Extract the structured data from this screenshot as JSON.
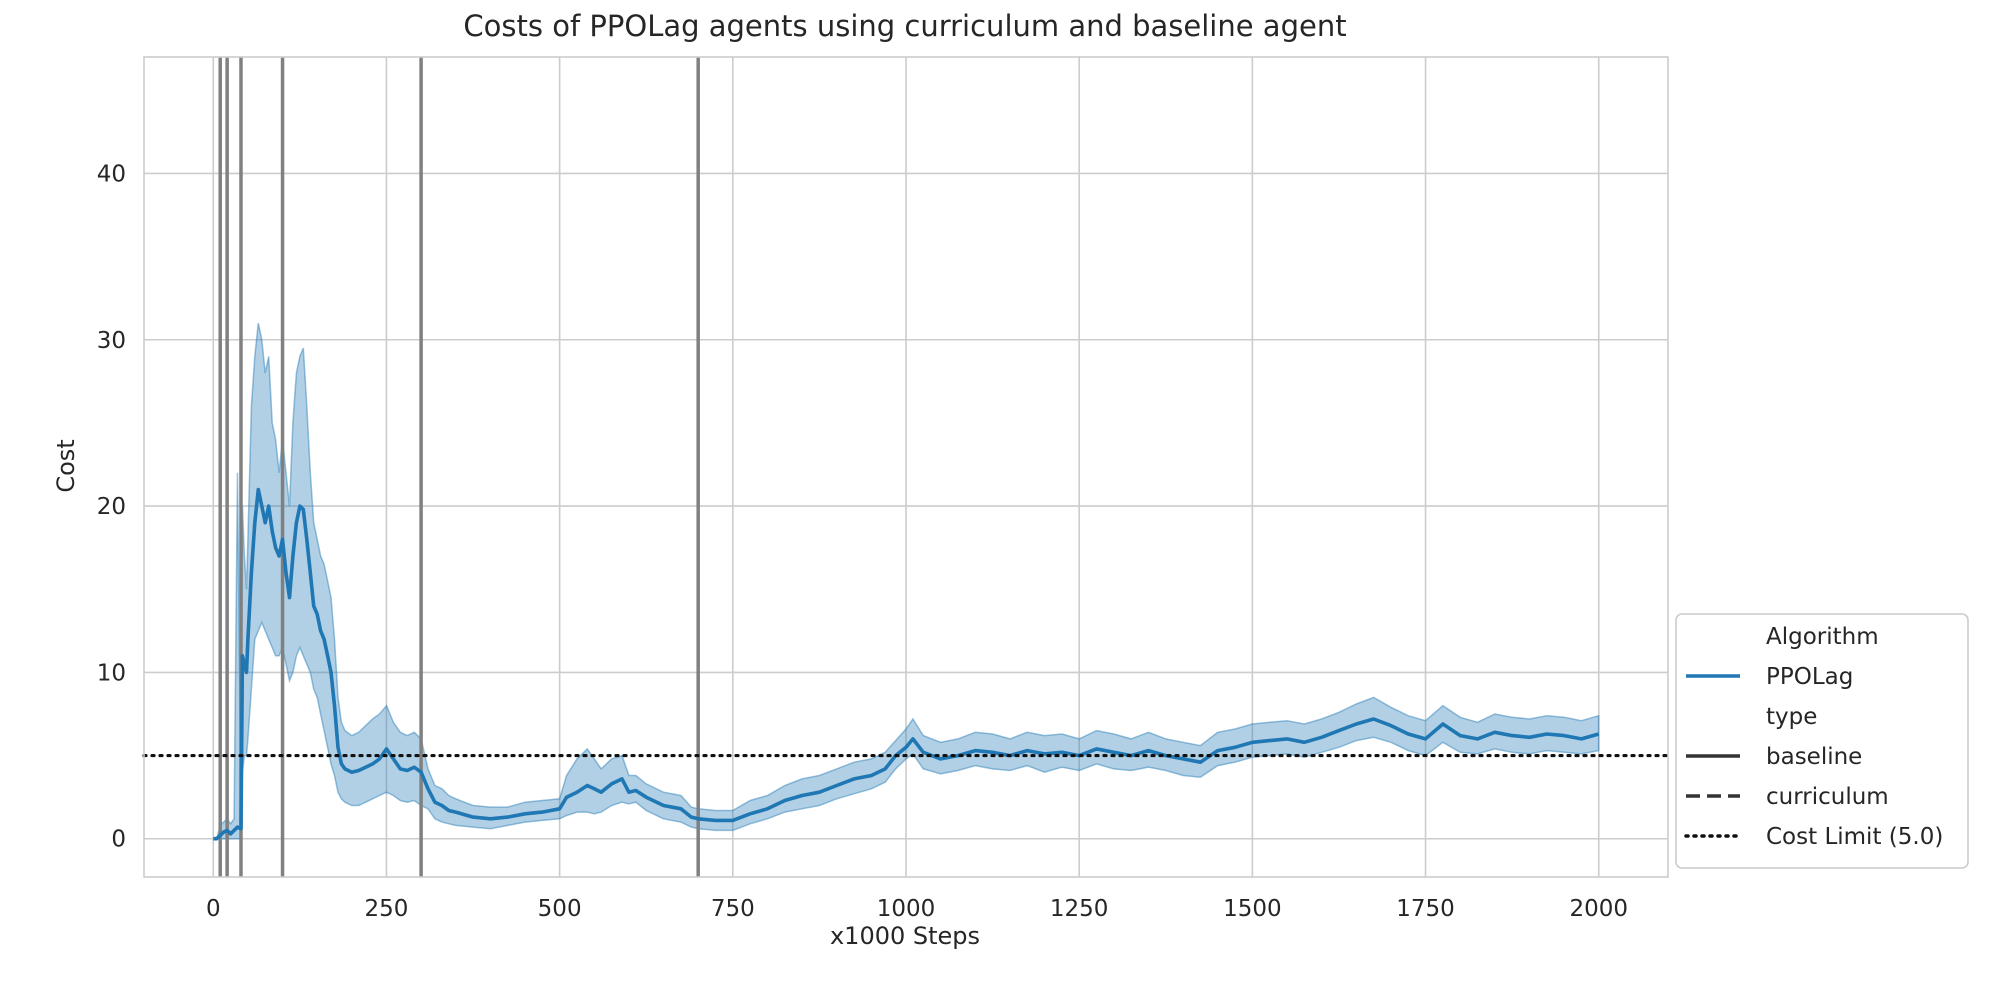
{
  "chart_data": {
    "type": "line",
    "title": "Costs of PPOLag agents using curriculum and baseline agent",
    "xlabel": "x1000 Steps",
    "ylabel": "Cost",
    "xlim": [
      -100,
      2100
    ],
    "ylim": [
      -2.3,
      47.0
    ],
    "x_ticks": [
      0,
      250,
      500,
      750,
      1000,
      1250,
      1500,
      1750,
      2000
    ],
    "y_ticks": [
      0,
      10,
      20,
      30,
      40
    ],
    "grid": true,
    "legend_placement": "lower-right outside",
    "legend": {
      "items": [
        {
          "label": "Algorithm",
          "style": "header"
        },
        {
          "label": "PPOLag",
          "style": "solid-blue"
        },
        {
          "label": "type",
          "style": "header"
        },
        {
          "label": "baseline",
          "style": "solid"
        },
        {
          "label": "curriculum",
          "style": "dashed"
        },
        {
          "label": "Cost Limit (5.0)",
          "style": "dotted"
        }
      ]
    },
    "cost_limit": 5.0,
    "curriculum_switches": [
      10,
      20,
      40,
      100,
      300,
      700
    ],
    "series": [
      {
        "name": "PPOLag",
        "color": "#1f77b4",
        "band_color": "#1f77b4",
        "x": [
          0,
          5,
          10,
          15,
          20,
          25,
          30,
          35,
          40,
          42,
          45,
          48,
          50,
          55,
          60,
          65,
          70,
          75,
          80,
          85,
          90,
          95,
          100,
          105,
          110,
          115,
          120,
          125,
          130,
          135,
          140,
          145,
          150,
          155,
          160,
          165,
          170,
          175,
          180,
          185,
          190,
          200,
          210,
          220,
          230,
          240,
          250,
          260,
          270,
          280,
          290,
          300,
          310,
          320,
          330,
          340,
          350,
          375,
          400,
          425,
          450,
          475,
          500,
          510,
          525,
          540,
          550,
          560,
          575,
          590,
          600,
          610,
          625,
          650,
          675,
          690,
          700,
          725,
          750,
          775,
          800,
          825,
          850,
          875,
          900,
          925,
          950,
          970,
          985,
          1000,
          1010,
          1025,
          1050,
          1075,
          1100,
          1125,
          1150,
          1175,
          1200,
          1225,
          1250,
          1275,
          1300,
          1325,
          1350,
          1375,
          1400,
          1425,
          1450,
          1475,
          1500,
          1525,
          1550,
          1575,
          1600,
          1625,
          1650,
          1675,
          1700,
          1725,
          1750,
          1775,
          1800,
          1825,
          1850,
          1875,
          1900,
          1925,
          1950,
          1975,
          2000
        ],
        "values": [
          0,
          0,
          0.2,
          0.4,
          0.5,
          0.3,
          0.5,
          0.7,
          0.6,
          11,
          10.5,
          10,
          12,
          16,
          19,
          21,
          20,
          19,
          20,
          18.5,
          17.5,
          17,
          18,
          16,
          14.5,
          17,
          19,
          20,
          19.8,
          18,
          16,
          14,
          13.5,
          12.5,
          12,
          11,
          10,
          8,
          5.5,
          4.5,
          4.2,
          4,
          4.1,
          4.3,
          4.5,
          4.8,
          5.4,
          4.8,
          4.2,
          4.1,
          4.3,
          4.0,
          3.0,
          2.2,
          2.0,
          1.7,
          1.6,
          1.3,
          1.2,
          1.3,
          1.5,
          1.6,
          1.8,
          2.5,
          2.8,
          3.2,
          3.0,
          2.8,
          3.3,
          3.6,
          2.8,
          2.9,
          2.5,
          2.0,
          1.8,
          1.3,
          1.2,
          1.1,
          1.1,
          1.5,
          1.8,
          2.3,
          2.6,
          2.8,
          3.2,
          3.6,
          3.8,
          4.2,
          5.0,
          5.5,
          6.0,
          5.2,
          4.8,
          5.0,
          5.3,
          5.2,
          5.0,
          5.3,
          5.1,
          5.2,
          5.0,
          5.4,
          5.2,
          5.0,
          5.3,
          5.0,
          4.8,
          4.6,
          5.3,
          5.5,
          5.8,
          5.9,
          6.0,
          5.8,
          6.1,
          6.5,
          6.9,
          7.2,
          6.8,
          6.3,
          6.0,
          6.9,
          6.2,
          6.0,
          6.4,
          6.2,
          6.1,
          6.3,
          6.2,
          6.0,
          6.3
        ],
        "lower": [
          0,
          0,
          0,
          0,
          0,
          0,
          0,
          0,
          0,
          4,
          5,
          5,
          6,
          9,
          12,
          12.5,
          13,
          12.5,
          12,
          11.5,
          11,
          11,
          11.5,
          10.5,
          9.5,
          10,
          11,
          11.5,
          11,
          10.5,
          10,
          9,
          8.5,
          7.5,
          6.5,
          5.5,
          4.5,
          3.8,
          2.8,
          2.4,
          2.2,
          2.0,
          2.0,
          2.2,
          2.4,
          2.6,
          2.8,
          2.6,
          2.3,
          2.2,
          2.3,
          2.0,
          1.8,
          1.2,
          1.0,
          0.9,
          0.8,
          0.7,
          0.6,
          0.8,
          1.0,
          1.1,
          1.2,
          1.4,
          1.6,
          1.6,
          1.5,
          1.6,
          2.0,
          2.2,
          2.1,
          2.2,
          1.7,
          1.2,
          1.0,
          0.7,
          0.6,
          0.5,
          0.5,
          0.9,
          1.2,
          1.6,
          1.8,
          2.0,
          2.4,
          2.7,
          3.0,
          3.4,
          4.2,
          4.8,
          5.1,
          4.2,
          3.9,
          4.1,
          4.4,
          4.2,
          4.1,
          4.4,
          4.0,
          4.3,
          4.1,
          4.5,
          4.2,
          4.1,
          4.3,
          4.1,
          3.8,
          3.7,
          4.4,
          4.6,
          4.9,
          5.0,
          5.1,
          4.9,
          5.2,
          5.5,
          5.9,
          6.1,
          5.8,
          5.3,
          5.0,
          5.8,
          5.2,
          5.1,
          5.4,
          5.2,
          5.1,
          5.3,
          5.2,
          5.1,
          5.3
        ],
        "upper": [
          0,
          0,
          0.8,
          1.0,
          1.2,
          0.9,
          1.2,
          22,
          1.5,
          20,
          17,
          15,
          18,
          26,
          29,
          31,
          30,
          28,
          29,
          25,
          24,
          22,
          24,
          22,
          20,
          25,
          28,
          29,
          29.5,
          26,
          22,
          19,
          18,
          17,
          16.5,
          15.5,
          14.5,
          12,
          8.5,
          7,
          6.5,
          6.2,
          6.4,
          6.8,
          7.2,
          7.5,
          8.0,
          7.0,
          6.4,
          6.2,
          6.4,
          6.0,
          4.2,
          3.2,
          3.0,
          2.6,
          2.4,
          2.0,
          1.9,
          1.9,
          2.2,
          2.3,
          2.4,
          3.8,
          4.8,
          5.4,
          4.8,
          4.2,
          4.8,
          5.0,
          3.8,
          3.8,
          3.3,
          2.8,
          2.6,
          1.9,
          1.8,
          1.7,
          1.7,
          2.3,
          2.6,
          3.2,
          3.6,
          3.8,
          4.2,
          4.6,
          4.8,
          5.2,
          5.9,
          6.6,
          7.2,
          6.2,
          5.8,
          6.0,
          6.4,
          6.3,
          6.0,
          6.4,
          6.2,
          6.3,
          6.0,
          6.5,
          6.3,
          6.0,
          6.4,
          6.0,
          5.8,
          5.6,
          6.4,
          6.6,
          6.9,
          7.0,
          7.1,
          6.9,
          7.2,
          7.6,
          8.1,
          8.5,
          7.9,
          7.4,
          7.1,
          8.0,
          7.3,
          7.0,
          7.5,
          7.3,
          7.2,
          7.4,
          7.3,
          7.1,
          7.4
        ]
      }
    ]
  }
}
